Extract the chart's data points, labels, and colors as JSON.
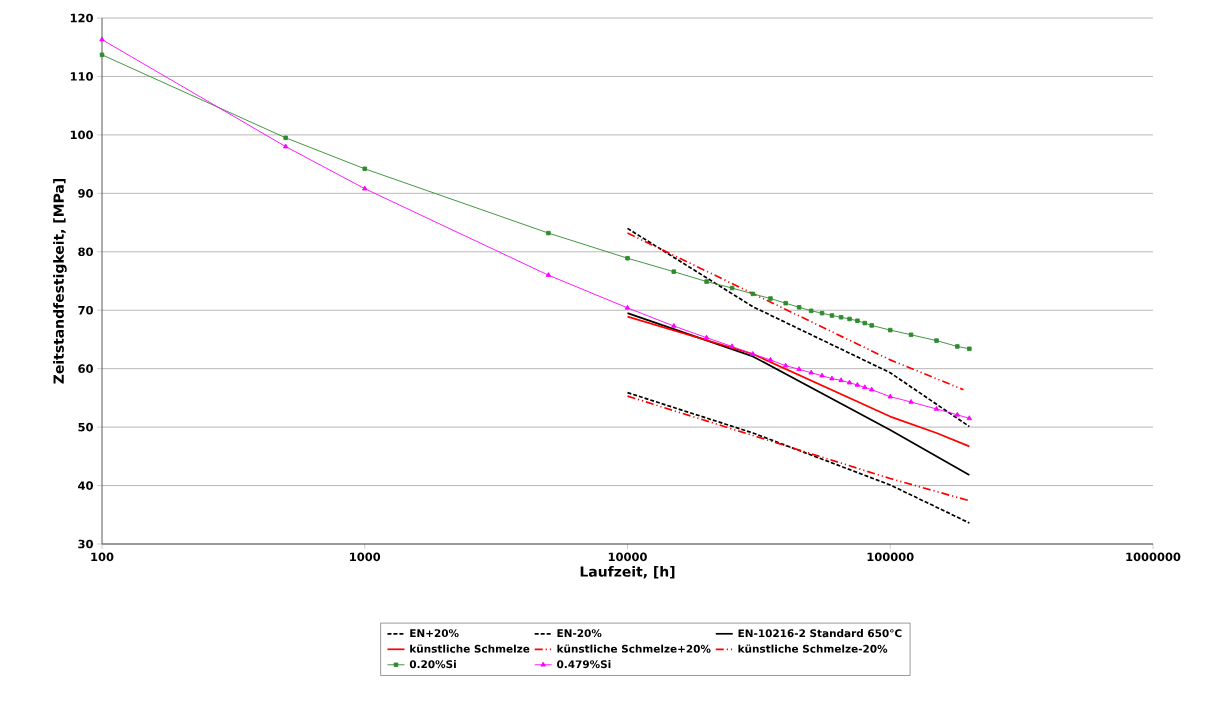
{
  "chart_data": {
    "type": "line",
    "xlabel": "Laufzeit, [h]",
    "ylabel": "Zeitstandfestigkeit, [MPa]",
    "log": "x",
    "xlim": [
      100,
      1000000
    ],
    "xticks": [
      100,
      1000,
      10000,
      100000,
      1000000
    ],
    "ylim": [
      30,
      120
    ],
    "yticks": [
      30,
      40,
      50,
      60,
      70,
      80,
      90,
      100,
      110,
      120
    ],
    "grid": "y",
    "legend": "bottom",
    "marker": "none",
    "series": [
      {
        "name": "EN+20%",
        "color": "#000000",
        "line_style": "dashed",
        "x": [
          10000,
          30000,
          100000,
          200000
        ],
        "values": [
          84,
          70.6,
          59.3,
          50.1
        ]
      },
      {
        "name": "EN-20%",
        "color": "#000000",
        "line_style": "dashed",
        "x": [
          10000,
          30000,
          100000,
          200000
        ],
        "values": [
          55.9,
          49.0,
          40.1,
          33.6
        ]
      },
      {
        "name": "EN-10216-2 Standard 650°C",
        "color": "#000000",
        "line_style": "solid",
        "x": [
          10000,
          30000,
          100000,
          200000
        ],
        "values": [
          69.5,
          62.1,
          49.5,
          41.8
        ]
      },
      {
        "name": "künstliche Schmelze",
        "color": "#ff0000",
        "line_style": "solid",
        "x": [
          10000,
          30000,
          100000,
          150000,
          200000
        ],
        "values": [
          68.9,
          62.5,
          51.8,
          49.0,
          46.7
        ]
      },
      {
        "name": "künstliche Schmelze+20%",
        "color": "#ff0000",
        "line_style": "dashdotdotted",
        "x": [
          10000,
          100000,
          190000
        ],
        "values": [
          83.2,
          61.5,
          56.4
        ]
      },
      {
        "name": "künstliche Schmelze-20%",
        "color": "#ff0000",
        "line_style": "dashdotdotted",
        "x": [
          10000,
          100000,
          200000
        ],
        "values": [
          55.3,
          41.2,
          37.4
        ]
      },
      {
        "name": "0.20%Si",
        "color": "#2e8b2e",
        "line_style": "solid",
        "marker": "square",
        "x": [
          100,
          500,
          1000,
          5000,
          10000,
          15000,
          20000,
          25000,
          30000,
          35000,
          40000,
          45000,
          50000,
          55000,
          60000,
          65000,
          70000,
          75000,
          80000,
          85000,
          100000,
          120000,
          150000,
          180000,
          200000
        ],
        "values": [
          113.7,
          99.5,
          94.2,
          83.2,
          78.9,
          76.6,
          74.9,
          73.8,
          72.8,
          72.0,
          71.2,
          70.5,
          69.9,
          69.5,
          69.1,
          68.8,
          68.5,
          68.2,
          67.8,
          67.4,
          66.6,
          65.8,
          64.8,
          63.8,
          63.4
        ]
      },
      {
        "name": "0.479%Si",
        "color": "#ff00ff",
        "line_style": "solid",
        "marker": "triangle",
        "x": [
          100,
          500,
          1000,
          5000,
          10000,
          15000,
          20000,
          25000,
          30000,
          35000,
          40000,
          45000,
          50000,
          55000,
          60000,
          65000,
          70000,
          75000,
          80000,
          85000,
          100000,
          120000,
          150000,
          180000,
          200000
        ],
        "values": [
          116.3,
          98,
          90.8,
          76,
          70.4,
          67.3,
          65.3,
          63.8,
          62.5,
          61.5,
          60.5,
          59.9,
          59.3,
          58.8,
          58.3,
          58.0,
          57.6,
          57.2,
          56.8,
          56.4,
          55.2,
          54.3,
          53.1,
          52.1,
          51.5
        ]
      }
    ]
  }
}
